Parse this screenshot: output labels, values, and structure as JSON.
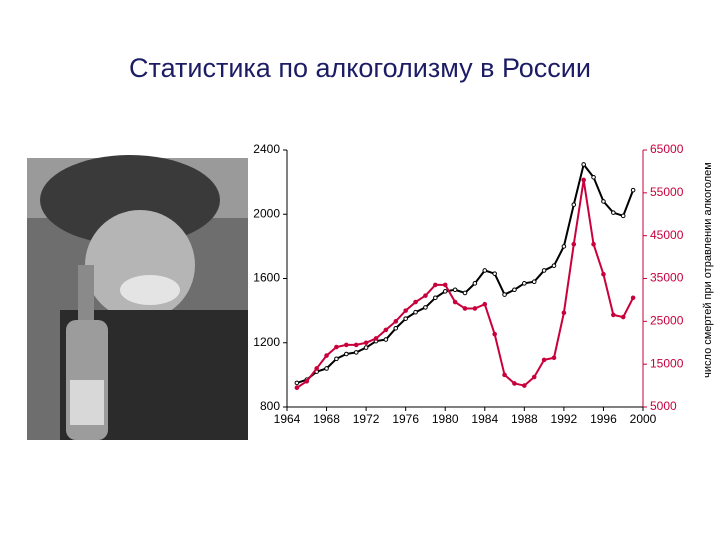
{
  "title": "Статистика по алкоголизму в России",
  "chart_data": {
    "type": "line",
    "x": [
      1965,
      1966,
      1967,
      1968,
      1969,
      1970,
      1971,
      1972,
      1973,
      1974,
      1975,
      1976,
      1977,
      1978,
      1979,
      1980,
      1981,
      1982,
      1983,
      1984,
      1985,
      1986,
      1987,
      1988,
      1989,
      1990,
      1991,
      1992,
      1993,
      1994,
      1995,
      1996,
      1997,
      1998,
      1999
    ],
    "xlim": [
      1964,
      2000
    ],
    "xticks": [
      1964,
      1968,
      1972,
      1976,
      1980,
      1984,
      1988,
      1992,
      1996,
      2000
    ],
    "ylim": [
      800,
      2400
    ],
    "yticks": [
      800,
      1200,
      1600,
      2000,
      2400
    ],
    "y2lim": [
      5000,
      65000
    ],
    "y2ticks": [
      5000,
      15000,
      25000,
      35000,
      45000,
      55000,
      65000
    ],
    "y2label": "число смертей при отравлении алкоголем",
    "series": [
      {
        "color": "#000000",
        "axis": "y",
        "values": [
          950,
          970,
          1020,
          1040,
          1100,
          1130,
          1140,
          1170,
          1210,
          1220,
          1290,
          1350,
          1390,
          1420,
          1480,
          1520,
          1530,
          1510,
          1570,
          1650,
          1630,
          1500,
          1530,
          1570,
          1580,
          1650,
          1680,
          1800,
          2060,
          2310,
          2230,
          2080,
          2010,
          1990,
          2150
        ]
      },
      {
        "color": "#c8003c",
        "axis": "y2",
        "values": [
          9500,
          11000,
          14000,
          17000,
          19000,
          19500,
          19500,
          20000,
          21000,
          23000,
          25000,
          27500,
          29500,
          31000,
          33500,
          33500,
          29500,
          28000,
          28000,
          29000,
          22000,
          12500,
          10500,
          10000,
          12000,
          16000,
          16500,
          27000,
          43000,
          58000,
          43000,
          36000,
          26500,
          26000,
          30500
        ]
      }
    ]
  }
}
